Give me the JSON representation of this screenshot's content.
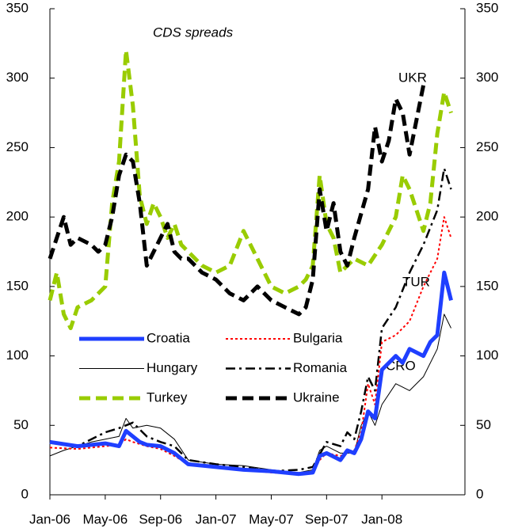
{
  "chart_data": {
    "type": "line",
    "title": "CDS spreads",
    "annotations": [
      "UKR",
      "TUR",
      "CRO"
    ],
    "xlim": [
      0,
      30
    ],
    "xticks": [
      {
        "value": 0,
        "label": "Jan-06"
      },
      {
        "value": 4,
        "label": "May-06"
      },
      {
        "value": 8,
        "label": "Sep-06"
      },
      {
        "value": 12,
        "label": "Jan-07"
      },
      {
        "value": 16,
        "label": "May-07"
      },
      {
        "value": 20,
        "label": "Sep-07"
      },
      {
        "value": 24,
        "label": "Jan-08"
      }
    ],
    "ylim": [
      0,
      350
    ],
    "yticks": [
      0,
      50,
      100,
      150,
      200,
      250,
      300,
      350
    ],
    "y2lim": [
      0,
      350
    ],
    "y2ticks": [
      0,
      50,
      100,
      150,
      200,
      250,
      300,
      350
    ],
    "series": [
      {
        "name": "Croatia",
        "color": "#1f3fff",
        "style": "thick",
        "x": [
          0,
          2,
          4,
          5,
          5.5,
          6,
          6.5,
          7,
          8,
          9,
          10,
          12,
          14,
          16,
          18,
          19,
          19.5,
          20,
          21,
          21.5,
          22,
          22.5,
          23,
          23.5,
          24,
          25,
          25.5,
          26,
          27,
          27.5,
          28,
          28.5,
          29
        ],
        "values": [
          38,
          35,
          37,
          35,
          46,
          42,
          38,
          36,
          35,
          30,
          22,
          20,
          18,
          17,
          15,
          16,
          28,
          30,
          25,
          32,
          30,
          40,
          60,
          55,
          90,
          100,
          95,
          105,
          100,
          110,
          115,
          160,
          140
        ]
      },
      {
        "name": "Bulgaria",
        "color": "#ff0000",
        "style": "dotted",
        "x": [
          0,
          2,
          4,
          5,
          5.5,
          6,
          7,
          8,
          9,
          10,
          12,
          14,
          16,
          18,
          19,
          19.5,
          20,
          21,
          22,
          22.5,
          23,
          23.5,
          24,
          25,
          26,
          27,
          28,
          28.5,
          29
        ],
        "values": [
          34,
          33,
          35,
          36,
          40,
          38,
          35,
          33,
          28,
          22,
          20,
          18,
          16,
          15,
          16,
          25,
          30,
          28,
          32,
          45,
          80,
          65,
          110,
          115,
          125,
          150,
          170,
          200,
          185
        ]
      },
      {
        "name": "Hungary",
        "color": "#000000",
        "style": "thin",
        "x": [
          0,
          1,
          2,
          3,
          4,
          5,
          5.5,
          6,
          7,
          8,
          9,
          10,
          12,
          14,
          16,
          18,
          19,
          19.5,
          20,
          21,
          22,
          22.5,
          23,
          23.5,
          24,
          25,
          26,
          27,
          28,
          28.5,
          29
        ],
        "values": [
          28,
          32,
          35,
          38,
          40,
          42,
          55,
          48,
          50,
          48,
          40,
          25,
          22,
          21,
          18,
          16,
          18,
          32,
          35,
          30,
          30,
          50,
          60,
          50,
          65,
          80,
          75,
          85,
          105,
          130,
          120
        ]
      },
      {
        "name": "Romania",
        "color": "#000000",
        "style": "dashdot",
        "x": [
          0,
          2,
          4,
          5,
          6,
          7,
          8,
          9,
          10,
          12,
          14,
          16,
          18,
          19,
          20,
          21,
          21.5,
          22,
          22.5,
          23,
          23.5,
          24,
          25,
          26,
          27,
          28,
          28.5,
          29
        ],
        "values": [
          38,
          35,
          45,
          48,
          52,
          42,
          38,
          35,
          25,
          22,
          20,
          17,
          18,
          20,
          38,
          35,
          45,
          40,
          60,
          85,
          75,
          120,
          135,
          160,
          180,
          205,
          235,
          220
        ]
      },
      {
        "name": "Turkey",
        "color": "#99cc00",
        "style": "thick-dashed",
        "x": [
          0,
          0.5,
          1,
          1.5,
          2,
          3,
          4,
          4.5,
          5,
          5.5,
          6,
          6.5,
          7,
          7.5,
          8,
          8.5,
          9,
          9.5,
          10,
          11,
          12,
          13,
          14,
          15,
          16,
          17,
          18,
          18.5,
          19,
          19.5,
          20,
          20.5,
          21,
          22,
          23,
          24,
          25,
          25.5,
          26,
          27,
          27.5,
          28,
          28.5,
          29
        ],
        "values": [
          140,
          160,
          130,
          120,
          135,
          140,
          150,
          210,
          240,
          320,
          280,
          215,
          195,
          210,
          200,
          185,
          195,
          180,
          175,
          165,
          160,
          165,
          190,
          170,
          150,
          145,
          150,
          155,
          165,
          230,
          195,
          185,
          160,
          170,
          165,
          180,
          200,
          230,
          220,
          190,
          210,
          260,
          290,
          275
        ]
      },
      {
        "name": "Ukraine",
        "color": "#000000",
        "style": "thick-dashed",
        "x": [
          0,
          0.5,
          1,
          1.5,
          2,
          3,
          3.5,
          4,
          4.5,
          5,
          5.5,
          6,
          6.5,
          7,
          7.5,
          8,
          8.5,
          9,
          9.5,
          10,
          11,
          12,
          13,
          14,
          15,
          16,
          17,
          18,
          18.5,
          19,
          19.5,
          20,
          20.5,
          21,
          21.5,
          22,
          23,
          23.5,
          24,
          24.5,
          25,
          25.5,
          26,
          26.5,
          27
        ],
        "values": [
          170,
          185,
          200,
          180,
          185,
          180,
          175,
          180,
          200,
          230,
          245,
          240,
          210,
          165,
          175,
          185,
          195,
          175,
          170,
          170,
          160,
          155,
          145,
          140,
          150,
          140,
          135,
          130,
          135,
          155,
          220,
          190,
          210,
          175,
          165,
          185,
          220,
          265,
          240,
          255,
          285,
          275,
          245,
          270,
          295
        ]
      }
    ]
  }
}
